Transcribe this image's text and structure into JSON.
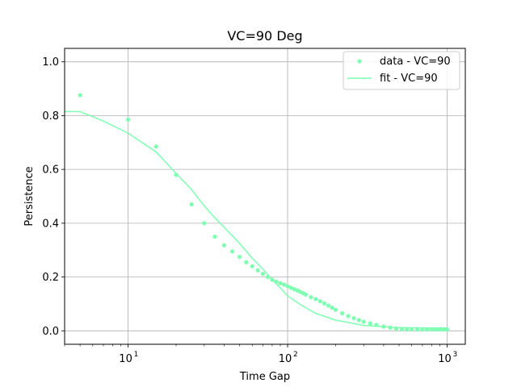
{
  "chart_data": {
    "type": "scatter",
    "title": "VC=90 Deg",
    "xlabel": "Time Gap",
    "ylabel": "Persistence",
    "xscale": "log",
    "xlim": [
      4,
      1300
    ],
    "ylim": [
      -0.05,
      1.05
    ],
    "grid": true,
    "legend_position": "top-right",
    "color": "#7fffb2",
    "y_ticks": [
      0.0,
      0.2,
      0.4,
      0.6,
      0.8,
      1.0
    ],
    "y_tick_labels": [
      "0.0",
      "0.2",
      "0.4",
      "0.6",
      "0.8",
      "1.0"
    ],
    "x_ticks": [
      10,
      100,
      1000
    ],
    "x_tick_labels": [
      "10",
      "10",
      "10"
    ],
    "x_tick_exponents": [
      "1",
      "2",
      "3"
    ],
    "series": [
      {
        "name": "data - VC=90",
        "kind": "scatter",
        "x": [
          5,
          10,
          15,
          20,
          25,
          30,
          35,
          40,
          45,
          50,
          55,
          60,
          65,
          70,
          75,
          80,
          85,
          90,
          95,
          100,
          105,
          110,
          115,
          120,
          125,
          130,
          140,
          150,
          160,
          170,
          180,
          190,
          200,
          220,
          240,
          260,
          280,
          300,
          330,
          360,
          400,
          440,
          480,
          520,
          560,
          600,
          650,
          700,
          750,
          800,
          850,
          900,
          950,
          1000
        ],
        "y": [
          0.876,
          0.785,
          0.685,
          0.58,
          0.47,
          0.4,
          0.35,
          0.318,
          0.295,
          0.275,
          0.255,
          0.24,
          0.225,
          0.212,
          0.2,
          0.19,
          0.183,
          0.177,
          0.172,
          0.166,
          0.16,
          0.155,
          0.15,
          0.145,
          0.14,
          0.135,
          0.125,
          0.118,
          0.11,
          0.102,
          0.094,
          0.086,
          0.078,
          0.065,
          0.055,
          0.047,
          0.04,
          0.034,
          0.028,
          0.022,
          0.016,
          0.012,
          0.008,
          0.006,
          0.005,
          0.005,
          0.005,
          0.005,
          0.005,
          0.005,
          0.005,
          0.005,
          0.005,
          0.005
        ]
      },
      {
        "name": "fit - VC=90",
        "kind": "line",
        "x": [
          4,
          5,
          7,
          10,
          15,
          20,
          25,
          30,
          35,
          40,
          50,
          60,
          70,
          80,
          90,
          100,
          120,
          150,
          200,
          300,
          400,
          500,
          700,
          1000
        ],
        "y": [
          0.815,
          0.815,
          0.78,
          0.735,
          0.665,
          0.585,
          0.525,
          0.465,
          0.42,
          0.385,
          0.325,
          0.27,
          0.23,
          0.19,
          0.16,
          0.13,
          0.098,
          0.065,
          0.04,
          0.02,
          0.015,
          0.012,
          0.011,
          0.01
        ]
      }
    ]
  }
}
